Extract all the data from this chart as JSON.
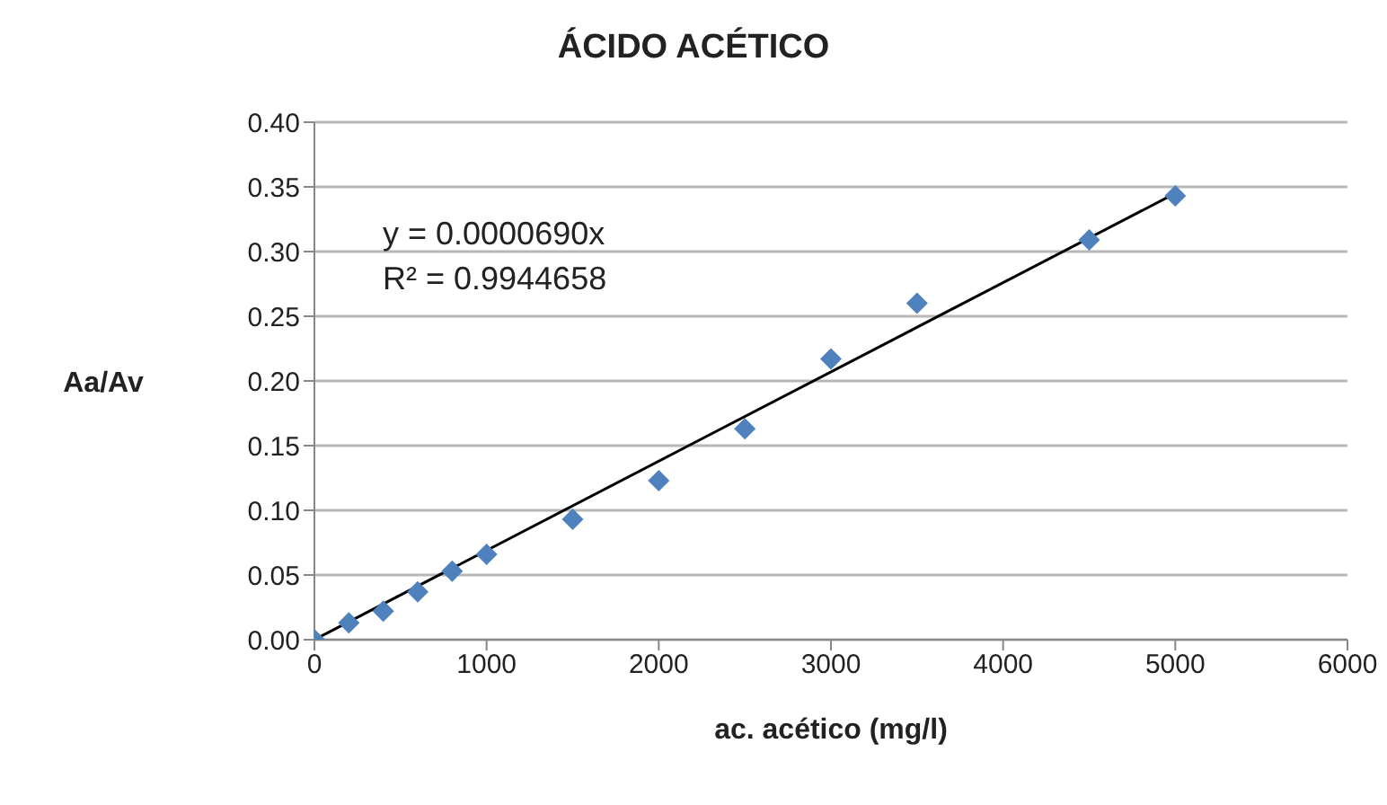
{
  "chart_data": {
    "type": "scatter",
    "title": "ÁCIDO ACÉTICO",
    "xlabel": "ac. acético (mg/l)",
    "ylabel": "Aa/Av",
    "annotations": [
      "y = 0.0000690x",
      "R² = 0.9944658"
    ],
    "series": [
      {
        "color": "#4f81bd",
        "marker": "diamond",
        "x": [
          0,
          200,
          400,
          600,
          800,
          1000,
          1500,
          2000,
          2500,
          3000,
          3500,
          4500,
          5000
        ],
        "values": [
          0.0,
          0.013,
          0.022,
          0.037,
          0.053,
          0.066,
          0.093,
          0.123,
          0.163,
          0.217,
          0.26,
          0.309,
          0.343
        ]
      },
      {
        "type": "line",
        "color": "#000000",
        "marker": "none",
        "x": [
          0,
          5000
        ],
        "values": [
          0,
          0.345
        ]
      }
    ],
    "xlim": [
      0,
      6000
    ],
    "xticks": [
      0,
      1000,
      2000,
      3000,
      4000,
      5000,
      6000
    ],
    "ylim": [
      0,
      0.4
    ],
    "yticks": [
      {
        "value": 0,
        "label": "0.00"
      },
      {
        "value": 0.05,
        "label": "0.05"
      },
      {
        "value": 0.1,
        "label": "0.10"
      },
      {
        "value": 0.15,
        "label": "0.15"
      },
      {
        "value": 0.2,
        "label": "0.20"
      },
      {
        "value": 0.25,
        "label": "0.25"
      },
      {
        "value": 0.3,
        "label": "0.30"
      },
      {
        "value": 0.35,
        "label": "0.35"
      },
      {
        "value": 0.4,
        "label": "0.40"
      }
    ],
    "grid": "y"
  }
}
